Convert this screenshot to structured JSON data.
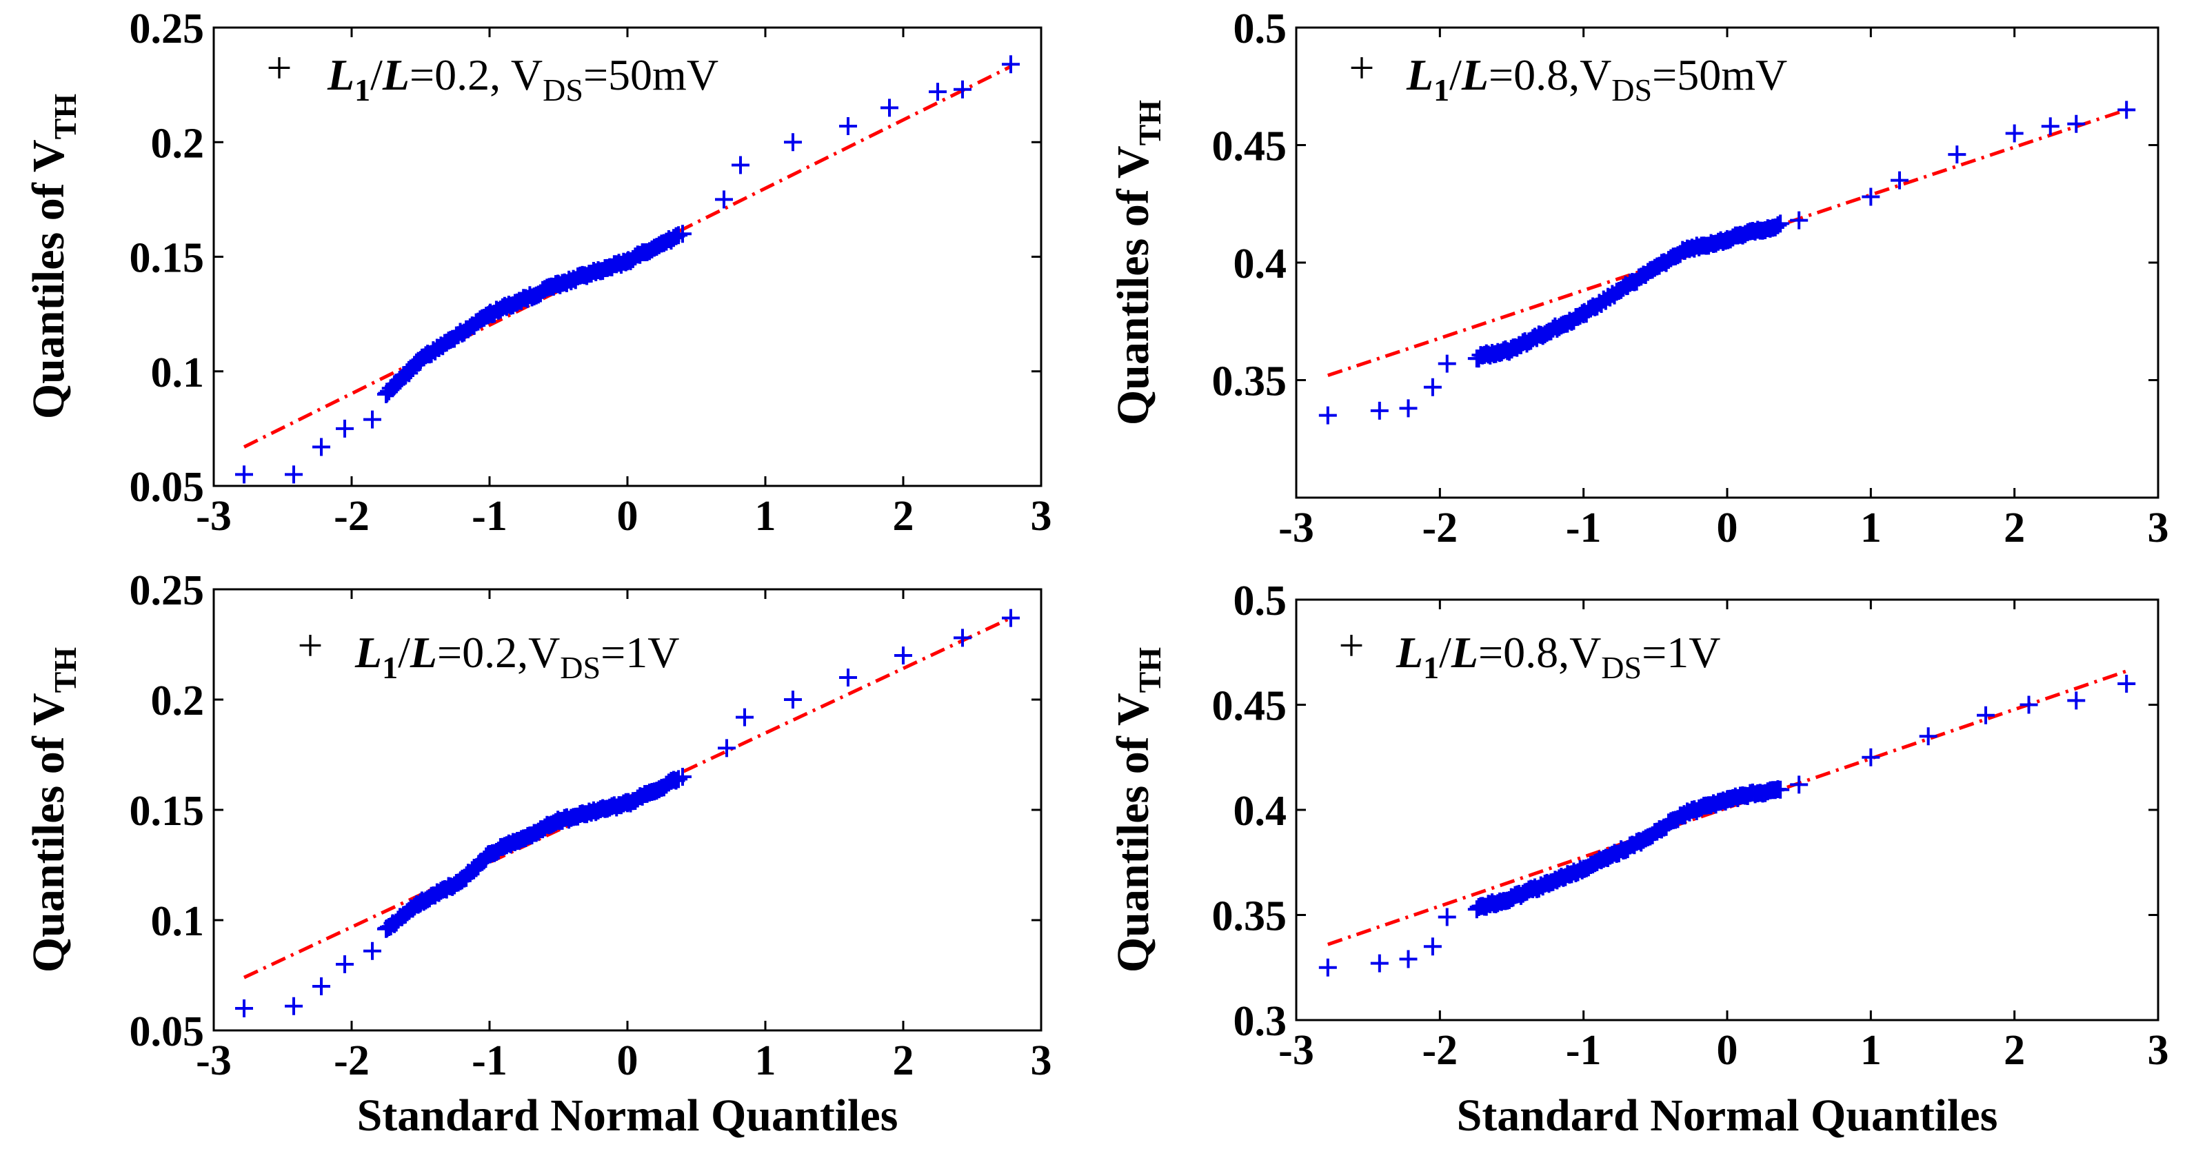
{
  "figure": {
    "xlabel": "Standard Normal Quantiles",
    "ylabel_main": "Quantiles of V",
    "ylabel_sub": "TH"
  },
  "colors": {
    "marker": "#0000ee",
    "fit_line": "#ff0000",
    "axes": "#000000"
  },
  "chart_data": [
    {
      "type": "scatter",
      "title": "",
      "xlabel": "",
      "ylabel": "Quantiles of V_TH",
      "xlim": [
        -3,
        3
      ],
      "ylim": [
        0.05,
        0.25
      ],
      "xticks": [
        -3,
        -2,
        -1,
        0,
        1,
        2,
        3
      ],
      "xtick_labels": [
        "-3",
        "-2",
        "-1",
        "0",
        "1",
        "2",
        "3"
      ],
      "yticks": [
        0.05,
        0.1,
        0.15,
        0.2,
        0.25
      ],
      "ytick_labels": [
        "0.05",
        "0.1",
        "0.15",
        "0.2",
        "0.25"
      ],
      "legend": {
        "parts": [
          "L",
          "1",
          "/",
          "L",
          "=0.2, V",
          "DS",
          "=50mV"
        ],
        "placement": "top-left"
      },
      "fit_line": {
        "x": [
          -2.78,
          2.78
        ],
        "y": [
          0.067,
          0.233
        ]
      },
      "anchors": [
        {
          "x": -2.78,
          "y": 0.055
        },
        {
          "x": -2.42,
          "y": 0.055
        },
        {
          "x": -2.22,
          "y": 0.067
        },
        {
          "x": -2.05,
          "y": 0.075
        },
        {
          "x": -1.85,
          "y": 0.079
        },
        {
          "x": -1.75,
          "y": 0.09
        },
        {
          "x": -1.5,
          "y": 0.105
        },
        {
          "x": -1.0,
          "y": 0.125
        },
        {
          "x": -0.5,
          "y": 0.138
        },
        {
          "x": 0.0,
          "y": 0.148
        },
        {
          "x": 0.4,
          "y": 0.16
        },
        {
          "x": 0.7,
          "y": 0.175
        },
        {
          "x": 0.82,
          "y": 0.19
        },
        {
          "x": 1.2,
          "y": 0.2
        },
        {
          "x": 1.6,
          "y": 0.207
        },
        {
          "x": 1.9,
          "y": 0.215
        },
        {
          "x": 2.25,
          "y": 0.222
        },
        {
          "x": 2.43,
          "y": 0.223
        },
        {
          "x": 2.78,
          "y": 0.234
        }
      ]
    },
    {
      "type": "scatter",
      "title": "",
      "xlabel": "",
      "ylabel": "Quantiles of V_TH",
      "xlim": [
        -3,
        3
      ],
      "ylim": [
        0.3,
        0.5
      ],
      "xticks": [
        -3,
        -2,
        -1,
        0,
        1,
        2,
        3
      ],
      "xtick_labels": [
        "-3",
        "-2",
        "-1",
        "0",
        "1",
        "2",
        "3"
      ],
      "yticks": [
        0.35,
        0.4,
        0.45,
        0.5
      ],
      "ytick_labels": [
        "0.35",
        "0.4",
        "0.45",
        "0.5"
      ],
      "legend": {
        "parts": [
          "L",
          "1",
          "/",
          "L",
          "=0.8,V",
          "DS",
          "=50mV"
        ],
        "placement": "top-left"
      },
      "fit_line": {
        "x": [
          -2.78,
          2.78
        ],
        "y": [
          0.352,
          0.465
        ]
      },
      "anchors": [
        {
          "x": -2.78,
          "y": 0.335
        },
        {
          "x": -2.42,
          "y": 0.337
        },
        {
          "x": -2.22,
          "y": 0.338
        },
        {
          "x": -2.05,
          "y": 0.347
        },
        {
          "x": -1.95,
          "y": 0.357
        },
        {
          "x": -1.5,
          "y": 0.363
        },
        {
          "x": -1.0,
          "y": 0.378
        },
        {
          "x": -0.7,
          "y": 0.39
        },
        {
          "x": -0.3,
          "y": 0.405
        },
        {
          "x": 0.0,
          "y": 0.41
        },
        {
          "x": 0.5,
          "y": 0.418
        },
        {
          "x": 1.0,
          "y": 0.428
        },
        {
          "x": 1.2,
          "y": 0.435
        },
        {
          "x": 1.6,
          "y": 0.446
        },
        {
          "x": 2.0,
          "y": 0.455
        },
        {
          "x": 2.25,
          "y": 0.458
        },
        {
          "x": 2.43,
          "y": 0.459
        },
        {
          "x": 2.78,
          "y": 0.465
        }
      ]
    },
    {
      "type": "scatter",
      "title": "",
      "xlabel": "Standard Normal Quantiles",
      "ylabel": "Quantiles of V_TH",
      "xlim": [
        -3,
        3
      ],
      "ylim": [
        0.05,
        0.25
      ],
      "xticks": [
        -3,
        -2,
        -1,
        0,
        1,
        2,
        3
      ],
      "xtick_labels": [
        "-3",
        "-2",
        "-1",
        "0",
        "1",
        "2",
        "3"
      ],
      "yticks": [
        0.05,
        0.1,
        0.15,
        0.2,
        0.25
      ],
      "ytick_labels": [
        "0.05",
        "0.1",
        "0.15",
        "0.2",
        "0.25"
      ],
      "legend": {
        "parts": [
          "L",
          "1",
          "/",
          "L",
          "=0.2,V",
          "DS",
          "=1V"
        ],
        "placement": "top-left"
      },
      "fit_line": {
        "x": [
          -2.78,
          2.78
        ],
        "y": [
          0.074,
          0.237
        ]
      },
      "anchors": [
        {
          "x": -2.78,
          "y": 0.06
        },
        {
          "x": -2.42,
          "y": 0.061
        },
        {
          "x": -2.22,
          "y": 0.07
        },
        {
          "x": -2.05,
          "y": 0.08
        },
        {
          "x": -1.85,
          "y": 0.086
        },
        {
          "x": -1.75,
          "y": 0.096
        },
        {
          "x": -1.5,
          "y": 0.108
        },
        {
          "x": -1.2,
          "y": 0.118
        },
        {
          "x": -1.0,
          "y": 0.13
        },
        {
          "x": -0.5,
          "y": 0.145
        },
        {
          "x": 0.0,
          "y": 0.153
        },
        {
          "x": 0.4,
          "y": 0.165
        },
        {
          "x": 0.72,
          "y": 0.178
        },
        {
          "x": 0.85,
          "y": 0.192
        },
        {
          "x": 1.2,
          "y": 0.2
        },
        {
          "x": 1.6,
          "y": 0.21
        },
        {
          "x": 2.0,
          "y": 0.22
        },
        {
          "x": 2.43,
          "y": 0.228
        },
        {
          "x": 2.78,
          "y": 0.237
        }
      ]
    },
    {
      "type": "scatter",
      "title": "",
      "xlabel": "Standard Normal Quantiles",
      "ylabel": "Quantiles of V_TH",
      "xlim": [
        -3,
        3
      ],
      "ylim": [
        0.3,
        0.5
      ],
      "xticks": [
        -3,
        -2,
        -1,
        0,
        1,
        2,
        3
      ],
      "xtick_labels": [
        "-3",
        "-2",
        "-1",
        "0",
        "1",
        "2",
        "3"
      ],
      "yticks": [
        0.3,
        0.35,
        0.4,
        0.45,
        0.5
      ],
      "ytick_labels": [
        "0.3",
        "0.35",
        "0.4",
        "0.45",
        "0.5"
      ],
      "legend": {
        "parts": [
          "L",
          "1",
          "/",
          "L",
          "=0.8,V",
          "DS",
          "=1V"
        ],
        "placement": "top-left"
      },
      "fit_line": {
        "x": [
          -2.78,
          2.78
        ],
        "y": [
          0.336,
          0.466
        ]
      },
      "anchors": [
        {
          "x": -2.78,
          "y": 0.325
        },
        {
          "x": -2.42,
          "y": 0.327
        },
        {
          "x": -2.22,
          "y": 0.329
        },
        {
          "x": -2.05,
          "y": 0.335
        },
        {
          "x": -1.95,
          "y": 0.349
        },
        {
          "x": -1.5,
          "y": 0.358
        },
        {
          "x": -1.0,
          "y": 0.372
        },
        {
          "x": -0.6,
          "y": 0.385
        },
        {
          "x": -0.3,
          "y": 0.398
        },
        {
          "x": 0.0,
          "y": 0.405
        },
        {
          "x": 0.5,
          "y": 0.412
        },
        {
          "x": 1.0,
          "y": 0.425
        },
        {
          "x": 1.4,
          "y": 0.435
        },
        {
          "x": 1.8,
          "y": 0.445
        },
        {
          "x": 2.1,
          "y": 0.45
        },
        {
          "x": 2.43,
          "y": 0.452
        },
        {
          "x": 2.78,
          "y": 0.46
        }
      ]
    }
  ]
}
